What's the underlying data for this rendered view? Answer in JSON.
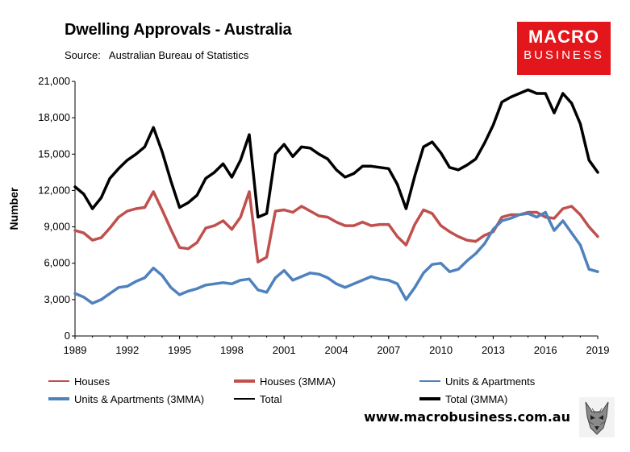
{
  "header": {
    "title": "Dwelling Approvals - Australia",
    "source_label": "Source:",
    "source_text": "Australian Bureau of Statistics"
  },
  "logo": {
    "line1": "MACRO",
    "line2": "BUSINESS"
  },
  "website": "www.macrobusiness.com.au",
  "colors": {
    "houses": "#c0504d",
    "units": "#4f81bd",
    "total": "#000000",
    "logo_bg": "#e3161c"
  },
  "chart_data": {
    "type": "line",
    "title": "Dwelling Approvals - Australia",
    "ylabel": "Number",
    "xlabel": "",
    "xlim": [
      1989,
      2019
    ],
    "ylim": [
      0,
      21000
    ],
    "x_ticks": [
      "1989",
      "1992",
      "1995",
      "1998",
      "2001",
      "2004",
      "2007",
      "2010",
      "2013",
      "2016",
      "2019"
    ],
    "y_ticks": [
      "0",
      "3,000",
      "6,000",
      "9,000",
      "12,000",
      "15,000",
      "18,000",
      "21,000"
    ],
    "grid": false,
    "legend_position": "bottom",
    "series": [
      {
        "name": "Houses",
        "color": "#c0504d",
        "width": 1,
        "x": [
          1989.0,
          1989.5,
          1990.0,
          1990.5,
          1991.0,
          1991.5,
          1992.0,
          1992.5,
          1993.0,
          1993.5,
          1994.0,
          1994.5,
          1995.0,
          1995.5,
          1996.0,
          1996.5,
          1997.0,
          1997.5,
          1998.0,
          1998.5,
          1999.0,
          1999.5,
          2000.0,
          2000.5,
          2001.0,
          2001.5,
          2002.0,
          2002.5,
          2003.0,
          2003.5,
          2004.0,
          2004.5,
          2005.0,
          2005.5,
          2006.0,
          2006.5,
          2007.0,
          2007.5,
          2008.0,
          2008.5,
          2009.0,
          2009.5,
          2010.0,
          2010.5,
          2011.0,
          2011.5,
          2012.0,
          2012.5,
          2013.0,
          2013.5,
          2014.0,
          2014.5,
          2015.0,
          2015.5,
          2016.0,
          2016.5,
          2017.0,
          2017.5,
          2018.0,
          2018.5,
          2019.0
        ],
        "y": [
          8700,
          8500,
          7900,
          8100,
          8900,
          9800,
          10300,
          10500,
          10600,
          11900,
          10400,
          8800,
          7300,
          7200,
          7700,
          8900,
          9100,
          9500,
          8800,
          9800,
          11900,
          6100,
          6500,
          10300,
          10400,
          10200,
          10700,
          10300,
          9900,
          9800,
          9400,
          9100,
          9100,
          9400,
          9100,
          9200,
          9200,
          8200,
          7500,
          9200,
          10400,
          10100,
          9100,
          8600,
          8200,
          7900,
          7800,
          8300,
          8600,
          9800,
          10000,
          10000,
          10200,
          10200,
          9800,
          9700,
          10500,
          10700,
          10000,
          9000,
          8200
        ]
      },
      {
        "name": "Houses (3MMA)",
        "color": "#c0504d",
        "width": 3.5,
        "x": [
          1989.0,
          1989.5,
          1990.0,
          1990.5,
          1991.0,
          1991.5,
          1992.0,
          1992.5,
          1993.0,
          1993.5,
          1994.0,
          1994.5,
          1995.0,
          1995.5,
          1996.0,
          1996.5,
          1997.0,
          1997.5,
          1998.0,
          1998.5,
          1999.0,
          1999.5,
          2000.0,
          2000.5,
          2001.0,
          2001.5,
          2002.0,
          2002.5,
          2003.0,
          2003.5,
          2004.0,
          2004.5,
          2005.0,
          2005.5,
          2006.0,
          2006.5,
          2007.0,
          2007.5,
          2008.0,
          2008.5,
          2009.0,
          2009.5,
          2010.0,
          2010.5,
          2011.0,
          2011.5,
          2012.0,
          2012.5,
          2013.0,
          2013.5,
          2014.0,
          2014.5,
          2015.0,
          2015.5,
          2016.0,
          2016.5,
          2017.0,
          2017.5,
          2018.0,
          2018.5,
          2019.0
        ],
        "y": [
          8700,
          8500,
          7900,
          8100,
          8900,
          9800,
          10300,
          10500,
          10600,
          11900,
          10400,
          8800,
          7300,
          7200,
          7700,
          8900,
          9100,
          9500,
          8800,
          9800,
          11900,
          6100,
          6500,
          10300,
          10400,
          10200,
          10700,
          10300,
          9900,
          9800,
          9400,
          9100,
          9100,
          9400,
          9100,
          9200,
          9200,
          8200,
          7500,
          9200,
          10400,
          10100,
          9100,
          8600,
          8200,
          7900,
          7800,
          8300,
          8600,
          9800,
          10000,
          10000,
          10200,
          10200,
          9800,
          9700,
          10500,
          10700,
          10000,
          9000,
          8200
        ]
      },
      {
        "name": "Units & Apartments",
        "color": "#4f81bd",
        "width": 1,
        "x": [
          1989.0,
          1989.5,
          1990.0,
          1990.5,
          1991.0,
          1991.5,
          1992.0,
          1992.5,
          1993.0,
          1993.5,
          1994.0,
          1994.5,
          1995.0,
          1995.5,
          1996.0,
          1996.5,
          1997.0,
          1997.5,
          1998.0,
          1998.5,
          1999.0,
          1999.5,
          2000.0,
          2000.5,
          2001.0,
          2001.5,
          2002.0,
          2002.5,
          2003.0,
          2003.5,
          2004.0,
          2004.5,
          2005.0,
          2005.5,
          2006.0,
          2006.5,
          2007.0,
          2007.5,
          2008.0,
          2008.5,
          2009.0,
          2009.5,
          2010.0,
          2010.5,
          2011.0,
          2011.5,
          2012.0,
          2012.5,
          2013.0,
          2013.5,
          2014.0,
          2014.5,
          2015.0,
          2015.5,
          2016.0,
          2016.5,
          2017.0,
          2017.5,
          2018.0,
          2018.5,
          2019.0
        ],
        "y": [
          3500,
          3200,
          2700,
          3000,
          3500,
          4000,
          4100,
          4500,
          4800,
          5600,
          5000,
          4000,
          3400,
          3700,
          3900,
          4200,
          4300,
          4400,
          4300,
          4600,
          4700,
          3800,
          3600,
          4800,
          5400,
          4600,
          4900,
          5200,
          5100,
          4800,
          4300,
          4000,
          4300,
          4600,
          4900,
          4700,
          4600,
          4300,
          3000,
          4000,
          5200,
          5900,
          6000,
          5300,
          5500,
          6200,
          6800,
          7600,
          8800,
          9500,
          9700,
          10000,
          10100,
          9800,
          10200,
          8700,
          9500,
          8500,
          7500,
          5500,
          5300
        ]
      },
      {
        "name": "Units & Apartments (3MMA)",
        "color": "#4f81bd",
        "width": 3.5,
        "x": [
          1989.0,
          1989.5,
          1990.0,
          1990.5,
          1991.0,
          1991.5,
          1992.0,
          1992.5,
          1993.0,
          1993.5,
          1994.0,
          1994.5,
          1995.0,
          1995.5,
          1996.0,
          1996.5,
          1997.0,
          1997.5,
          1998.0,
          1998.5,
          1999.0,
          1999.5,
          2000.0,
          2000.5,
          2001.0,
          2001.5,
          2002.0,
          2002.5,
          2003.0,
          2003.5,
          2004.0,
          2004.5,
          2005.0,
          2005.5,
          2006.0,
          2006.5,
          2007.0,
          2007.5,
          2008.0,
          2008.5,
          2009.0,
          2009.5,
          2010.0,
          2010.5,
          2011.0,
          2011.5,
          2012.0,
          2012.5,
          2013.0,
          2013.5,
          2014.0,
          2014.5,
          2015.0,
          2015.5,
          2016.0,
          2016.5,
          2017.0,
          2017.5,
          2018.0,
          2018.5,
          2019.0
        ],
        "y": [
          3500,
          3200,
          2700,
          3000,
          3500,
          4000,
          4100,
          4500,
          4800,
          5600,
          5000,
          4000,
          3400,
          3700,
          3900,
          4200,
          4300,
          4400,
          4300,
          4600,
          4700,
          3800,
          3600,
          4800,
          5400,
          4600,
          4900,
          5200,
          5100,
          4800,
          4300,
          4000,
          4300,
          4600,
          4900,
          4700,
          4600,
          4300,
          3000,
          4000,
          5200,
          5900,
          6000,
          5300,
          5500,
          6200,
          6800,
          7600,
          8800,
          9500,
          9700,
          10000,
          10100,
          9800,
          10200,
          8700,
          9500,
          8500,
          7500,
          5500,
          5300
        ]
      },
      {
        "name": "Total",
        "color": "#000000",
        "width": 1,
        "x": [
          1989.0,
          1989.5,
          1990.0,
          1990.5,
          1991.0,
          1991.5,
          1992.0,
          1992.5,
          1993.0,
          1993.5,
          1994.0,
          1994.5,
          1995.0,
          1995.5,
          1996.0,
          1996.5,
          1997.0,
          1997.5,
          1998.0,
          1998.5,
          1999.0,
          1999.5,
          2000.0,
          2000.5,
          2001.0,
          2001.5,
          2002.0,
          2002.5,
          2003.0,
          2003.5,
          2004.0,
          2004.5,
          2005.0,
          2005.5,
          2006.0,
          2006.5,
          2007.0,
          2007.5,
          2008.0,
          2008.5,
          2009.0,
          2009.5,
          2010.0,
          2010.5,
          2011.0,
          2011.5,
          2012.0,
          2012.5,
          2013.0,
          2013.5,
          2014.0,
          2014.5,
          2015.0,
          2015.5,
          2016.0,
          2016.5,
          2017.0,
          2017.5,
          2018.0,
          2018.5,
          2019.0
        ],
        "y": [
          12300,
          11700,
          10500,
          11400,
          13000,
          13800,
          14500,
          15000,
          15600,
          17200,
          15200,
          12800,
          10600,
          11000,
          11600,
          13000,
          13500,
          14200,
          13100,
          14500,
          16600,
          9800,
          10100,
          15000,
          15800,
          14800,
          15600,
          15500,
          15000,
          14600,
          13700,
          13100,
          13400,
          14000,
          14000,
          13900,
          13800,
          12500,
          10500,
          13200,
          15600,
          16000,
          15100,
          13900,
          13700,
          14100,
          14600,
          15900,
          17400,
          19300,
          19700,
          20000,
          20300,
          20000,
          20000,
          18400,
          20000,
          19200,
          17500,
          14500,
          13500
        ]
      },
      {
        "name": "Total (3MMA)",
        "color": "#000000",
        "width": 3.5,
        "x": [
          1989.0,
          1989.5,
          1990.0,
          1990.5,
          1991.0,
          1991.5,
          1992.0,
          1992.5,
          1993.0,
          1993.5,
          1994.0,
          1994.5,
          1995.0,
          1995.5,
          1996.0,
          1996.5,
          1997.0,
          1997.5,
          1998.0,
          1998.5,
          1999.0,
          1999.5,
          2000.0,
          2000.5,
          2001.0,
          2001.5,
          2002.0,
          2002.5,
          2003.0,
          2003.5,
          2004.0,
          2004.5,
          2005.0,
          2005.5,
          2006.0,
          2006.5,
          2007.0,
          2007.5,
          2008.0,
          2008.5,
          2009.0,
          2009.5,
          2010.0,
          2010.5,
          2011.0,
          2011.5,
          2012.0,
          2012.5,
          2013.0,
          2013.5,
          2014.0,
          2014.5,
          2015.0,
          2015.5,
          2016.0,
          2016.5,
          2017.0,
          2017.5,
          2018.0,
          2018.5,
          2019.0
        ],
        "y": [
          12300,
          11700,
          10500,
          11400,
          13000,
          13800,
          14500,
          15000,
          15600,
          17200,
          15200,
          12800,
          10600,
          11000,
          11600,
          13000,
          13500,
          14200,
          13100,
          14500,
          16600,
          9800,
          10100,
          15000,
          15800,
          14800,
          15600,
          15500,
          15000,
          14600,
          13700,
          13100,
          13400,
          14000,
          14000,
          13900,
          13800,
          12500,
          10500,
          13200,
          15600,
          16000,
          15100,
          13900,
          13700,
          14100,
          14600,
          15900,
          17400,
          19300,
          19700,
          20000,
          20300,
          20000,
          20000,
          18400,
          20000,
          19200,
          17500,
          14500,
          13500
        ]
      }
    ]
  }
}
